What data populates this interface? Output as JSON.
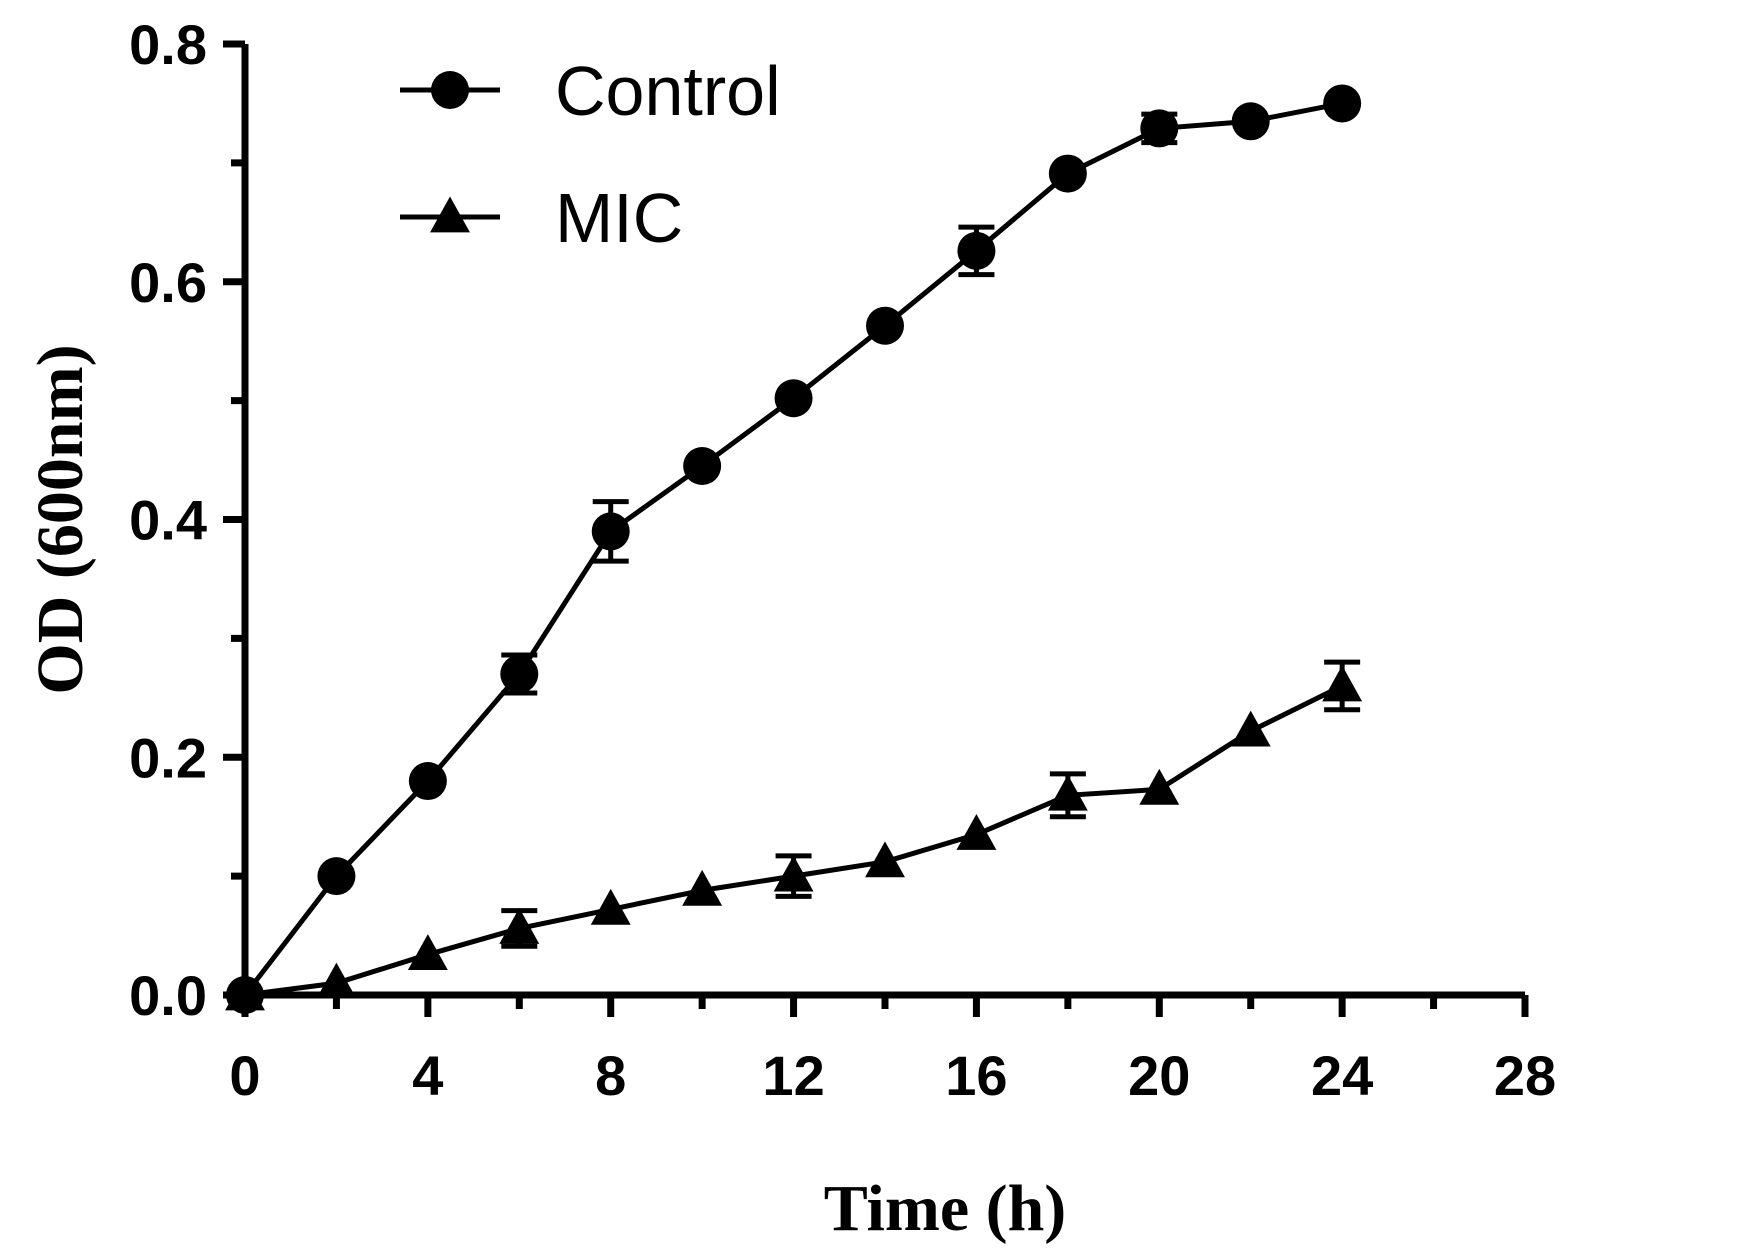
{
  "chart_data": {
    "type": "line",
    "title": "",
    "xlabel": "Time (h)",
    "ylabel": "OD (600nm)",
    "xlim": [
      0,
      28
    ],
    "ylim": [
      0,
      0.8
    ],
    "x_major_ticks": [
      0,
      4,
      8,
      12,
      16,
      20,
      24,
      28
    ],
    "x_minor_ticks": [
      2,
      6,
      10,
      14,
      18,
      22,
      26
    ],
    "y_major_ticks": [
      0.0,
      0.2,
      0.4,
      0.6,
      0.8
    ],
    "y_minor_ticks": [
      0.1,
      0.3,
      0.5,
      0.7
    ],
    "x_tick_labels": [
      "0",
      "4",
      "8",
      "12",
      "16",
      "20",
      "24",
      "28"
    ],
    "y_tick_labels": [
      "0.0",
      "0.2",
      "0.4",
      "0.6",
      "0.8"
    ],
    "legend_position": "top-left",
    "series": [
      {
        "name": "Control",
        "marker": "circle",
        "color": "#000000",
        "x": [
          0,
          2,
          4,
          6,
          8,
          10,
          12,
          14,
          16,
          18,
          20,
          22,
          24
        ],
        "values": [
          0.0,
          0.1,
          0.18,
          0.27,
          0.39,
          0.445,
          0.502,
          0.563,
          0.626,
          0.691,
          0.729,
          0.735,
          0.75
        ],
        "errors": [
          0.0,
          0.0,
          0.0,
          0.016,
          0.025,
          0.0,
          0.0,
          0.0,
          0.02,
          0.0,
          0.012,
          0.0,
          0.0
        ]
      },
      {
        "name": "MIC",
        "marker": "triangle",
        "color": "#000000",
        "x": [
          0,
          2,
          4,
          6,
          8,
          10,
          12,
          14,
          16,
          18,
          20,
          22,
          24
        ],
        "values": [
          0.0,
          0.01,
          0.034,
          0.056,
          0.072,
          0.088,
          0.1,
          0.112,
          0.135,
          0.168,
          0.173,
          0.222,
          0.26
        ],
        "errors": [
          0.0,
          0.0,
          0.0,
          0.015,
          0.0,
          0.0,
          0.017,
          0.0,
          0.0,
          0.018,
          0.0,
          0.0,
          0.02
        ]
      }
    ]
  }
}
